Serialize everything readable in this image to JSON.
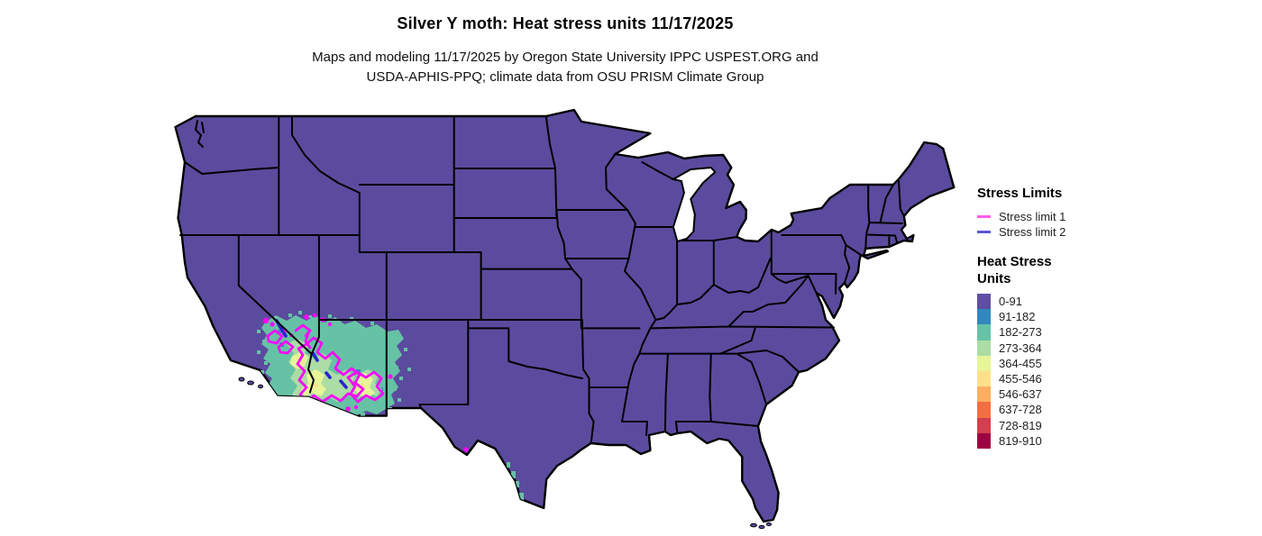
{
  "header": {
    "title": "Silver Y moth: Heat stress units 11/17/2025",
    "subtitle_line1": "Maps and modeling 11/17/2025 by Oregon State University IPPC USPEST.ORG and",
    "subtitle_line2": "USDA-APHIS-PPQ; climate data from OSU PRISM Climate Group"
  },
  "colors": {
    "map_base_fill": "#5b4b9e",
    "state_border": "#000000",
    "water": "#ffffff",
    "contour_limit1": "#f908f9",
    "contour_limit2": "#2823cb"
  },
  "legend": {
    "stress_limits": {
      "title": "Stress Limits",
      "items": [
        {
          "label": "Stress limit 1",
          "color": "#fd5cf0"
        },
        {
          "label": "Stress limit 2",
          "color": "#5e55d6"
        }
      ]
    },
    "heat_stress": {
      "title_line1": "Heat Stress",
      "title_line2": "Units",
      "classes": [
        {
          "range": "0-91",
          "color": "#5e4fa2"
        },
        {
          "range": "91-182",
          "color": "#3288bd"
        },
        {
          "range": "182-273",
          "color": "#66c2a5"
        },
        {
          "range": "273-364",
          "color": "#abdda4"
        },
        {
          "range": "364-455",
          "color": "#e6f598"
        },
        {
          "range": "455-546",
          "color": "#fee08b"
        },
        {
          "range": "546-637",
          "color": "#fdae61"
        },
        {
          "range": "637-728",
          "color": "#f46d43"
        },
        {
          "range": "728-819",
          "color": "#d53e4f"
        },
        {
          "range": "819-910",
          "color": "#9e0142"
        }
      ]
    }
  }
}
